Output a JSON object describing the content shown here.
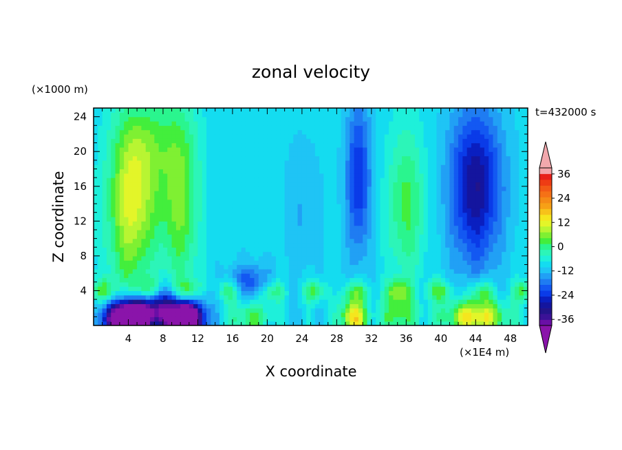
{
  "chart_data": {
    "type": "heatmap",
    "title": "zonal velocity",
    "xlabel": "X coordinate",
    "ylabel": "Z coordinate",
    "x_unit": "(×1E4 m)",
    "y_unit": "(×1000 m)",
    "time_label": "t=432000 s",
    "xlim": [
      0,
      50
    ],
    "ylim": [
      0,
      25
    ],
    "x_ticks": [
      4,
      8,
      12,
      16,
      20,
      24,
      28,
      32,
      36,
      40,
      44,
      48
    ],
    "x_tick_labels": [
      "4",
      "8",
      "12",
      "16",
      "20",
      "24",
      "28",
      "32",
      "36",
      "40",
      "44",
      "48"
    ],
    "y_ticks": [
      4,
      8,
      12,
      16,
      20,
      24
    ],
    "y_tick_labels": [
      "4",
      "8",
      "12",
      "16",
      "20",
      "24"
    ],
    "colorbar": {
      "levels": [
        -42,
        -39,
        -36,
        -33,
        -30,
        -27,
        -24,
        -21,
        -18,
        -15,
        -12,
        -9,
        -6,
        -3,
        0,
        3,
        6,
        9,
        12,
        15,
        18,
        21,
        24,
        27,
        30,
        33,
        36,
        39,
        42
      ],
      "colors": [
        "#6a0fa6",
        "#3b1297",
        "#23148a",
        "#14159e",
        "#0a1fc0",
        "#0a3be8",
        "#1358f2",
        "#1f7cf2",
        "#21a0f5",
        "#1fc4f5",
        "#14dcf0",
        "#1ef0da",
        "#2cf5b8",
        "#2af58e",
        "#43ee3c",
        "#7ff032",
        "#b8f532",
        "#e3f529",
        "#f5e61e",
        "#f7c21a",
        "#f7a016",
        "#f58a16",
        "#f57116",
        "#f25a16",
        "#ee3c14",
        "#e8201a",
        "#f3a4a9"
      ],
      "end_colors": [
        "#8a14aa",
        "#f2a8ad"
      ],
      "tick_labels": [
        "36",
        "24",
        "12",
        "0",
        "-12",
        "-24",
        "-36"
      ],
      "tick_values": [
        36,
        24,
        12,
        0,
        -12,
        -24,
        -36
      ]
    },
    "features": [
      {
        "x": 4.0,
        "z": 13,
        "sx": 2.6,
        "sz": 11,
        "value": 14
      },
      {
        "x": 5.5,
        "z": 16,
        "sx": 3.0,
        "sz": 8,
        "value": 10
      },
      {
        "x": 10.0,
        "z": 14,
        "sx": 2.2,
        "sz": 10,
        "value": 14
      },
      {
        "x": 7.5,
        "z": 22,
        "sx": 4.0,
        "sz": 5,
        "value": 6
      },
      {
        "x": 4.0,
        "z": 0.6,
        "sx": 2.4,
        "sz": 1.8,
        "value": -60
      },
      {
        "x": 10.5,
        "z": 0.6,
        "sx": 2.0,
        "sz": 1.8,
        "value": -55
      },
      {
        "x": 7.0,
        "z": 2.0,
        "sx": 4.5,
        "sz": 2.0,
        "value": -25
      },
      {
        "x": 30.5,
        "z": 17,
        "sx": 1.4,
        "sz": 9,
        "value": -16
      },
      {
        "x": 44.0,
        "z": 16,
        "sx": 3.0,
        "sz": 9,
        "value": -22
      },
      {
        "x": 36.0,
        "z": 14,
        "sx": 2.2,
        "sz": 9,
        "value": 12
      },
      {
        "x": 30.0,
        "z": 1.0,
        "sx": 1.5,
        "sz": 2.0,
        "value": 26
      },
      {
        "x": 44.0,
        "z": 1.0,
        "sx": 3.5,
        "sz": 2.0,
        "value": 26
      },
      {
        "x": 35.0,
        "z": 1.2,
        "sx": 2.0,
        "sz": 2.5,
        "value": 12
      },
      {
        "x": 18.0,
        "z": 1.0,
        "sx": 2.5,
        "sz": 1.8,
        "value": 12
      },
      {
        "x": 18.0,
        "z": 5.0,
        "sx": 2.5,
        "sz": 2.0,
        "value": -12
      },
      {
        "x": 24.0,
        "z": 13,
        "sx": 2.0,
        "sz": 8,
        "value": -4
      }
    ]
  }
}
